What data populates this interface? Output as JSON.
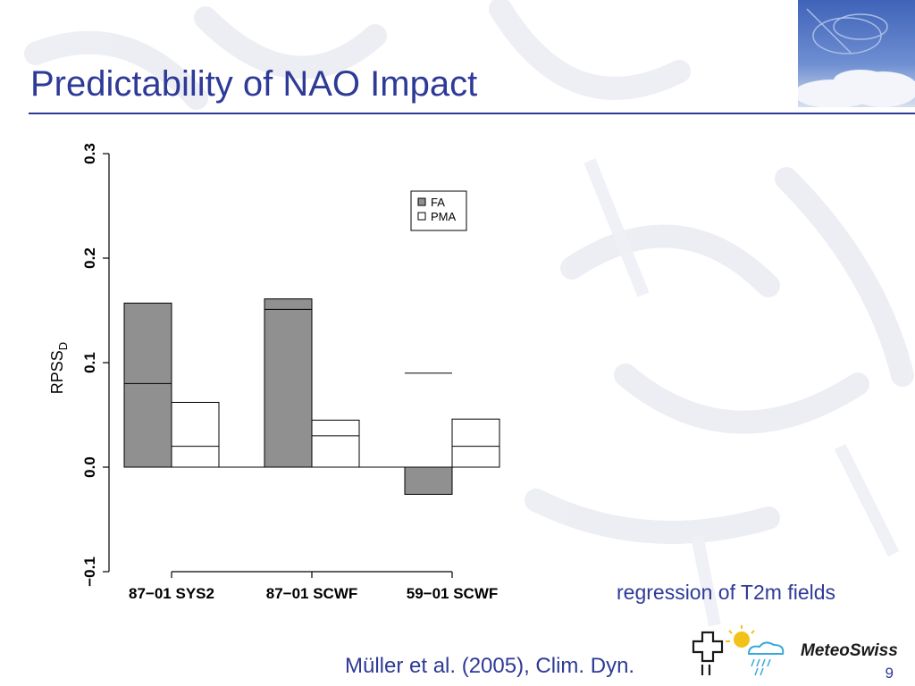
{
  "slide": {
    "title": "Predictability of NAO Impact",
    "caption": "regression of T2m fields",
    "citation": "Müller et al. (2005), Clim. Dyn.",
    "logo_text": "MeteoSwiss",
    "page_number": "9"
  },
  "colors": {
    "title_blue": "#2e3a97",
    "fa_fill": "#909090",
    "pma_fill": "#ffffff"
  },
  "chart_data": {
    "type": "bar",
    "categories": [
      "87−01 SYS2",
      "87−01 SCWF",
      "59−01 SCWF"
    ],
    "ylabel": "RPSS",
    "ylabel_sub": "D",
    "ylim": [
      -0.1,
      0.3
    ],
    "yticks": [
      "−0.1",
      "0.0",
      "0.1",
      "0.2",
      "0.3"
    ],
    "ytick_values": [
      -0.1,
      0.0,
      0.1,
      0.2,
      0.3
    ],
    "series": [
      {
        "name": "FA",
        "values": [
          0.157,
          0.161,
          -0.026
        ],
        "inner_line": [
          0.08,
          0.151,
          0.09
        ],
        "color": "#909090"
      },
      {
        "name": "PMA",
        "values": [
          0.062,
          0.045,
          0.046
        ],
        "inner_line": [
          0.02,
          0.03,
          0.02
        ],
        "color": "#ffffff"
      }
    ],
    "legend": "top-right",
    "grid": false
  }
}
